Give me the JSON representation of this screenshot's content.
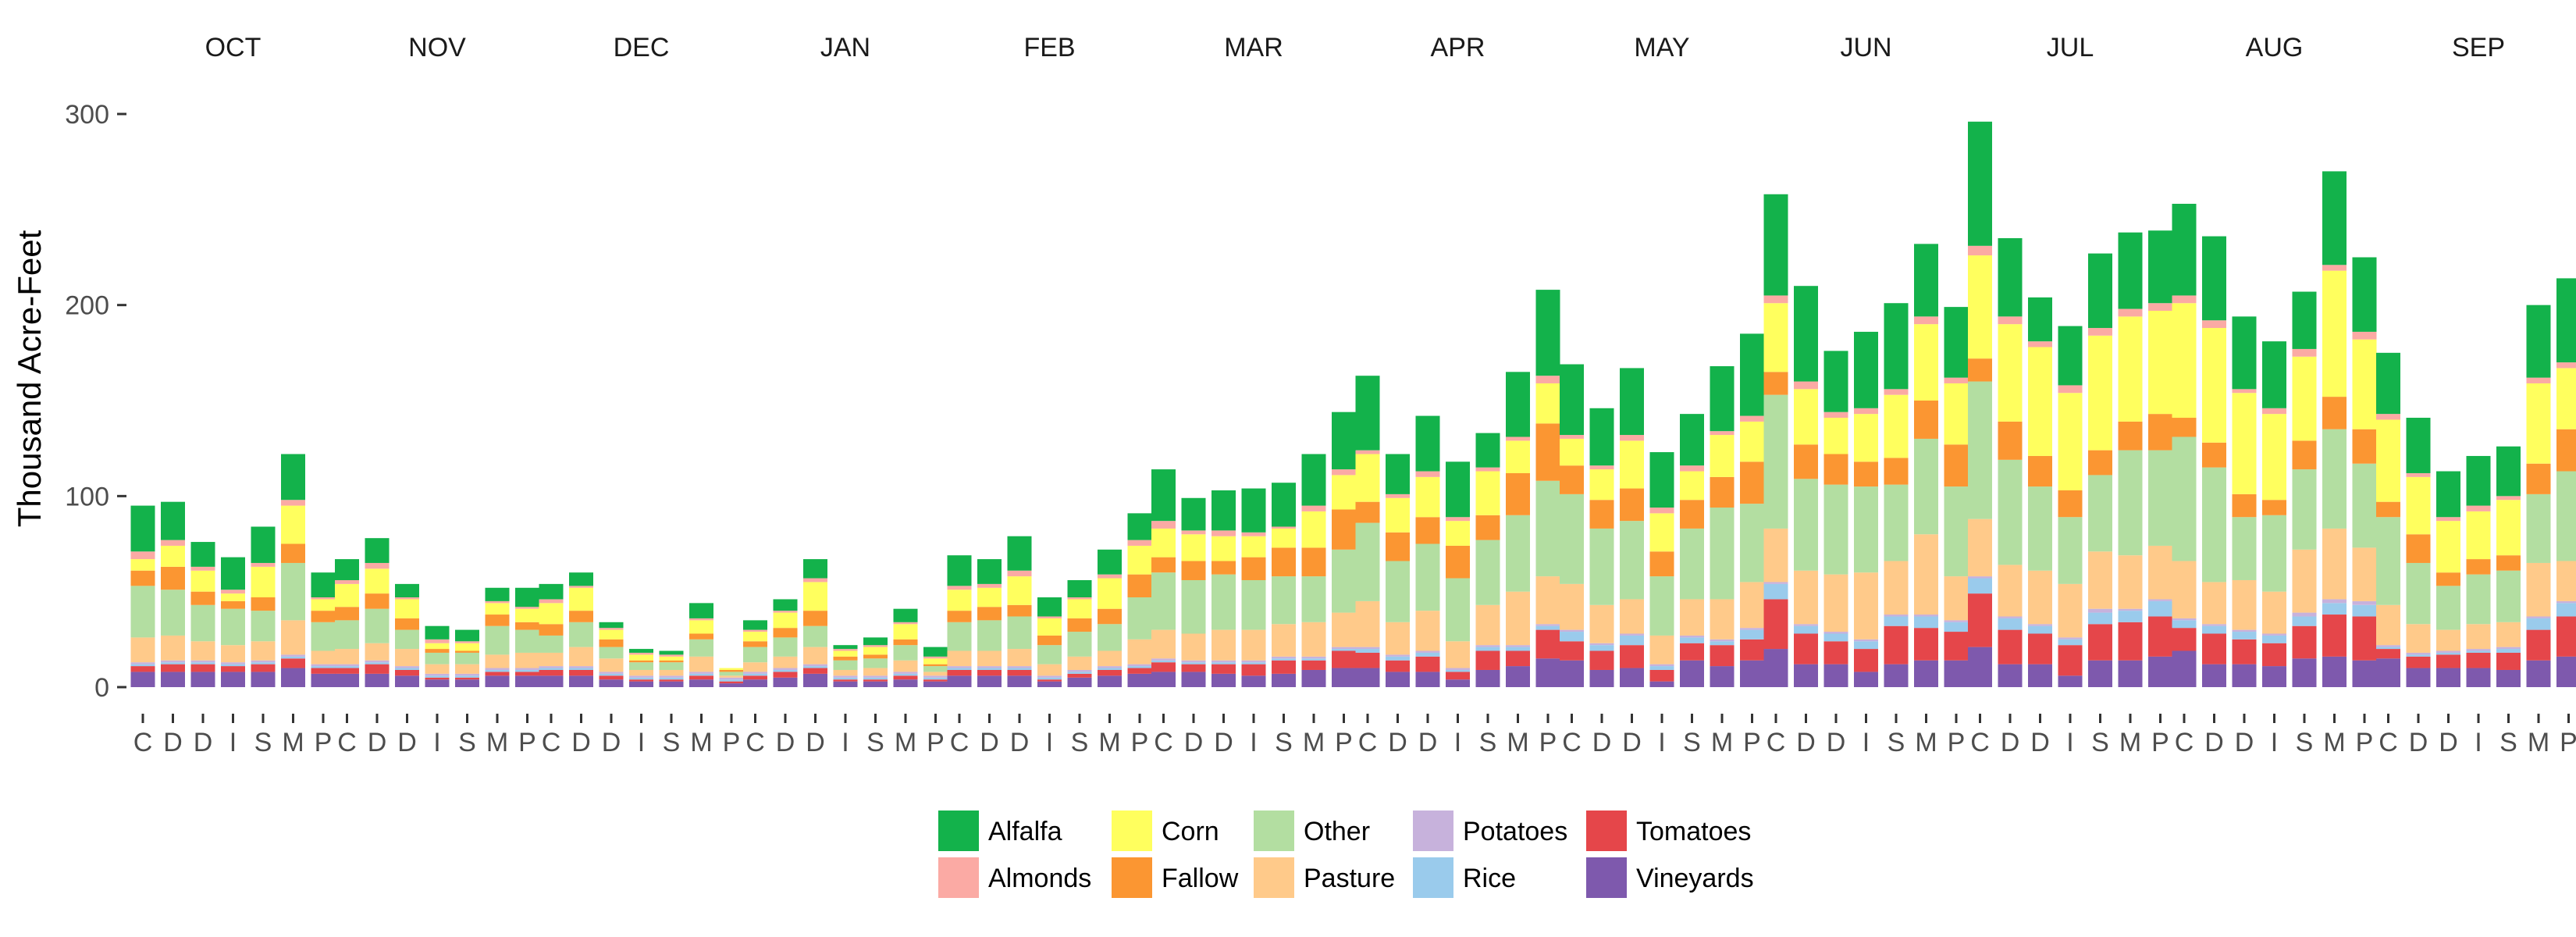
{
  "chart_data": {
    "type": "bar",
    "stacked": true,
    "ylabel": "Thousand Acre-Feet",
    "ylim": [
      0,
      300
    ],
    "yticks": [
      0,
      100,
      200,
      300
    ],
    "grid": false,
    "legend_position": "bottom",
    "facets": [
      "OCT",
      "NOV",
      "DEC",
      "JAN",
      "FEB",
      "MAR",
      "APR",
      "MAY",
      "JUN",
      "JUL",
      "AUG",
      "SEP"
    ],
    "categories": [
      "C",
      "D",
      "D",
      "I",
      "S",
      "M",
      "P"
    ],
    "stack_order": [
      "Vineyards",
      "Tomatoes",
      "Rice",
      "Potatoes",
      "Pasture",
      "Other",
      "Fallow",
      "Corn",
      "Almonds",
      "Alfalfa"
    ],
    "legend_order": [
      "Alfalfa",
      "Almonds",
      "Corn",
      "Fallow",
      "Other",
      "Pasture",
      "Potatoes",
      "Rice",
      "Tomatoes",
      "Vineyards"
    ],
    "colors": {
      "Alfalfa": "#13b24b",
      "Almonds": "#fbaaa4",
      "Corn": "#ffff5e",
      "Fallow": "#fb9632",
      "Other": "#b3dea1",
      "Pasture": "#ffca8a",
      "Potatoes": "#c7b2dc",
      "Rice": "#9acbec",
      "Tomatoes": "#e5464a",
      "Vineyards": "#7e59ad"
    },
    "bars": [
      [
        [
          8,
          3,
          1,
          1,
          13,
          27,
          8,
          6,
          4,
          24
        ],
        [
          8,
          4,
          1,
          1,
          13,
          24,
          12,
          11,
          3,
          20
        ],
        [
          8,
          4,
          1,
          1,
          10,
          19,
          7,
          11,
          2,
          13
        ],
        [
          8,
          3,
          1,
          1,
          9,
          19,
          4,
          4,
          2,
          17
        ],
        [
          8,
          4,
          1,
          1,
          10,
          16,
          7,
          16,
          2,
          19
        ],
        [
          10,
          5,
          1,
          1,
          18,
          30,
          10,
          20,
          3,
          24
        ],
        [
          7,
          3,
          1,
          1,
          7,
          15,
          6,
          6,
          1,
          13
        ]
      ],
      [
        [
          7,
          3,
          1,
          1,
          8,
          15,
          7,
          12,
          2,
          11
        ],
        [
          7,
          5,
          1,
          1,
          9,
          18,
          8,
          13,
          3,
          13
        ],
        [
          6,
          3,
          1,
          1,
          9,
          10,
          6,
          10,
          1,
          7
        ],
        [
          4,
          1,
          1,
          1,
          5,
          6,
          2,
          3,
          2,
          7
        ],
        [
          4,
          1,
          1,
          1,
          5,
          6,
          1,
          4,
          1,
          6
        ],
        [
          6,
          2,
          1,
          1,
          7,
          15,
          6,
          6,
          1,
          7
        ],
        [
          6,
          2,
          1,
          1,
          8,
          12,
          4,
          7,
          1,
          10
        ]
      ],
      [
        [
          6,
          3,
          1,
          1,
          7,
          9,
          6,
          11,
          2,
          8
        ],
        [
          6,
          3,
          1,
          1,
          10,
          13,
          6,
          12,
          1,
          7
        ],
        [
          4,
          2,
          1,
          1,
          7,
          6,
          4,
          5,
          1,
          3
        ],
        [
          3,
          1,
          1,
          1,
          3,
          4,
          1,
          3,
          1,
          2
        ],
        [
          3,
          1,
          1,
          1,
          3,
          4,
          1,
          2,
          1,
          2
        ],
        [
          4,
          2,
          1,
          1,
          8,
          9,
          3,
          7,
          1,
          8
        ],
        [
          2,
          1,
          1,
          1,
          1,
          2,
          1,
          1,
          0,
          0
        ]
      ],
      [
        [
          4,
          2,
          1,
          1,
          5,
          8,
          3,
          5,
          1,
          5
        ],
        [
          5,
          3,
          1,
          1,
          6,
          10,
          5,
          8,
          1,
          6
        ],
        [
          7,
          3,
          1,
          1,
          9,
          11,
          8,
          15,
          2,
          10
        ],
        [
          3,
          1,
          1,
          1,
          3,
          5,
          2,
          3,
          1,
          2
        ],
        [
          3,
          1,
          1,
          1,
          4,
          5,
          2,
          4,
          1,
          4
        ],
        [
          4,
          2,
          1,
          1,
          6,
          8,
          3,
          8,
          1,
          7
        ],
        [
          3,
          1,
          1,
          1,
          2,
          3,
          1,
          3,
          1,
          5
        ]
      ],
      [
        [
          6,
          3,
          1,
          1,
          8,
          15,
          6,
          11,
          2,
          16
        ],
        [
          6,
          3,
          1,
          1,
          8,
          16,
          7,
          10,
          2,
          13
        ],
        [
          6,
          3,
          1,
          1,
          9,
          17,
          6,
          15,
          3,
          18
        ],
        [
          3,
          1,
          1,
          1,
          6,
          10,
          5,
          9,
          1,
          10
        ],
        [
          5,
          2,
          1,
          1,
          7,
          13,
          7,
          10,
          1,
          9
        ],
        [
          6,
          3,
          1,
          1,
          8,
          14,
          8,
          16,
          2,
          13
        ],
        [
          7,
          3,
          1,
          1,
          13,
          22,
          12,
          15,
          3,
          14
        ]
      ],
      [
        [
          8,
          5,
          1,
          1,
          15,
          30,
          8,
          15,
          4,
          27
        ],
        [
          8,
          4,
          1,
          1,
          14,
          28,
          10,
          14,
          2,
          17
        ],
        [
          7,
          5,
          1,
          1,
          16,
          29,
          7,
          13,
          3,
          21
        ],
        [
          6,
          6,
          1,
          1,
          16,
          26,
          12,
          11,
          2,
          23
        ],
        [
          7,
          7,
          1,
          1,
          17,
          25,
          15,
          10,
          1,
          23
        ],
        [
          9,
          5,
          1,
          1,
          18,
          24,
          15,
          19,
          3,
          27
        ],
        [
          10,
          9,
          1,
          1,
          18,
          33,
          21,
          18,
          3,
          30
        ]
      ],
      [
        [
          10,
          8,
          2,
          1,
          24,
          41,
          11,
          25,
          2,
          39
        ],
        [
          8,
          6,
          2,
          1,
          17,
          32,
          15,
          18,
          2,
          21
        ],
        [
          8,
          8,
          2,
          1,
          21,
          35,
          14,
          21,
          3,
          29
        ],
        [
          4,
          4,
          1,
          1,
          14,
          33,
          17,
          13,
          2,
          29
        ],
        [
          9,
          10,
          2,
          1,
          21,
          34,
          13,
          23,
          2,
          18
        ],
        [
          11,
          8,
          2,
          1,
          28,
          40,
          22,
          17,
          2,
          34
        ],
        [
          15,
          15,
          2,
          1,
          25,
          50,
          30,
          21,
          4,
          45
        ]
      ],
      [
        [
          14,
          10,
          5,
          1,
          24,
          47,
          15,
          14,
          2,
          37
        ],
        [
          9,
          10,
          3,
          1,
          20,
          40,
          15,
          16,
          2,
          30
        ],
        [
          10,
          12,
          5,
          1,
          18,
          41,
          17,
          25,
          3,
          35
        ],
        [
          3,
          6,
          2,
          1,
          15,
          31,
          13,
          20,
          3,
          29
        ],
        [
          14,
          9,
          3,
          1,
          19,
          37,
          15,
          15,
          3,
          27
        ],
        [
          11,
          11,
          2,
          1,
          21,
          48,
          16,
          22,
          2,
          34
        ],
        [
          14,
          11,
          5,
          1,
          24,
          41,
          22,
          21,
          3,
          43
        ]
      ],
      [
        [
          20,
          26,
          8,
          1,
          28,
          70,
          12,
          36,
          4,
          53
        ],
        [
          12,
          16,
          4,
          1,
          28,
          48,
          18,
          29,
          4,
          50
        ],
        [
          12,
          12,
          4,
          1,
          30,
          47,
          16,
          19,
          3,
          32
        ],
        [
          8,
          12,
          4,
          1,
          35,
          45,
          13,
          25,
          3,
          40
        ],
        [
          12,
          20,
          5,
          1,
          28,
          40,
          14,
          33,
          3,
          45
        ],
        [
          14,
          17,
          6,
          1,
          42,
          50,
          20,
          40,
          4,
          38
        ],
        [
          14,
          15,
          5,
          1,
          23,
          47,
          22,
          32,
          3,
          37
        ]
      ],
      [
        [
          21,
          28,
          8,
          1,
          30,
          72,
          12,
          54,
          5,
          65
        ],
        [
          12,
          18,
          6,
          1,
          27,
          55,
          20,
          51,
          4,
          41
        ],
        [
          12,
          16,
          4,
          1,
          28,
          44,
          16,
          57,
          3,
          23
        ],
        [
          6,
          16,
          3,
          1,
          28,
          35,
          14,
          51,
          4,
          31
        ],
        [
          14,
          19,
          6,
          2,
          30,
          40,
          13,
          60,
          4,
          39
        ],
        [
          14,
          20,
          6,
          1,
          28,
          55,
          15,
          55,
          4,
          40
        ],
        [
          16,
          21,
          8,
          1,
          28,
          50,
          19,
          54,
          4,
          38
        ]
      ],
      [
        [
          19,
          12,
          4,
          1,
          30,
          65,
          10,
          60,
          4,
          48
        ],
        [
          12,
          16,
          4,
          1,
          22,
          60,
          13,
          60,
          4,
          44
        ],
        [
          12,
          13,
          4,
          1,
          26,
          33,
          12,
          53,
          2,
          38
        ],
        [
          11,
          12,
          4,
          1,
          22,
          40,
          8,
          45,
          3,
          35
        ],
        [
          15,
          17,
          5,
          2,
          33,
          42,
          15,
          44,
          4,
          30
        ],
        [
          16,
          22,
          6,
          2,
          37,
          52,
          17,
          66,
          3,
          49
        ],
        [
          14,
          23,
          6,
          2,
          28,
          44,
          18,
          47,
          4,
          39
        ]
      ],
      [
        [
          15,
          5,
          1,
          1,
          21,
          46,
          8,
          43,
          3,
          32
        ],
        [
          10,
          6,
          1,
          1,
          15,
          32,
          15,
          30,
          2,
          29
        ],
        [
          10,
          7,
          1,
          1,
          11,
          23,
          7,
          27,
          2,
          24
        ],
        [
          10,
          8,
          1,
          1,
          13,
          26,
          8,
          25,
          3,
          26
        ],
        [
          9,
          9,
          2,
          1,
          13,
          27,
          8,
          29,
          2,
          26
        ],
        [
          14,
          16,
          6,
          1,
          28,
          36,
          16,
          42,
          3,
          38
        ],
        [
          16,
          21,
          7,
          1,
          21,
          47,
          22,
          32,
          3,
          44
        ]
      ]
    ]
  },
  "legend_items": [
    {
      "label": "Alfalfa",
      "color": "#13b24b"
    },
    {
      "label": "Almonds",
      "color": "#fbaaa4"
    },
    {
      "label": "Corn",
      "color": "#ffff5e"
    },
    {
      "label": "Fallow",
      "color": "#fb9632"
    },
    {
      "label": "Other",
      "color": "#b3dea1"
    },
    {
      "label": "Pasture",
      "color": "#ffca8a"
    },
    {
      "label": "Potatoes",
      "color": "#c7b2dc"
    },
    {
      "label": "Rice",
      "color": "#9acbec"
    },
    {
      "label": "Tomatoes",
      "color": "#e5464a"
    },
    {
      "label": "Vineyards",
      "color": "#7e59ad"
    }
  ]
}
